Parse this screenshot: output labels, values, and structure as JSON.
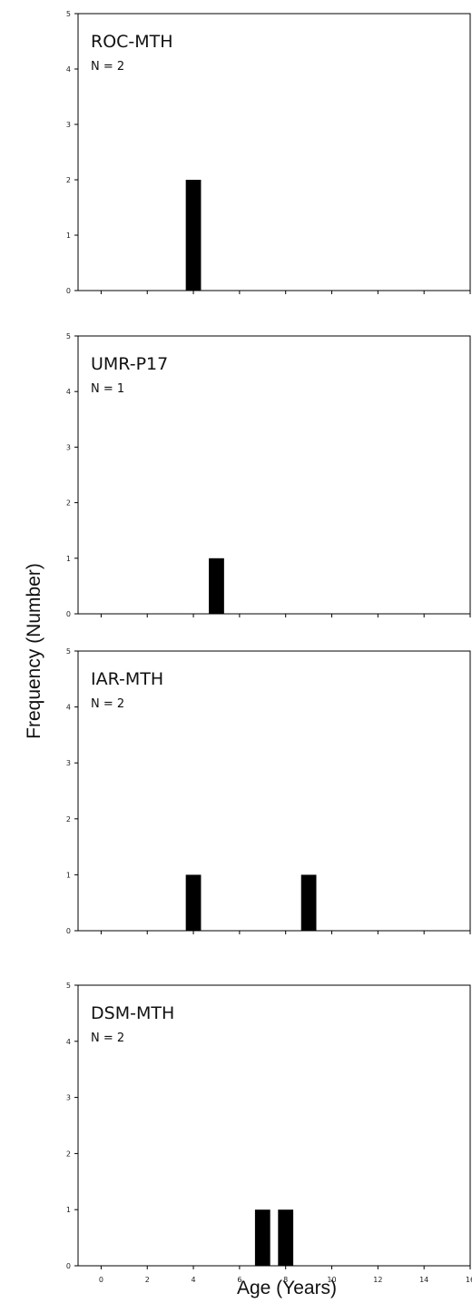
{
  "figure": {
    "ylabel": "Frequency (Number)",
    "xlabel": "Age (Years)"
  },
  "chart_data": [
    {
      "type": "bar",
      "title": "ROC-MTH",
      "subtitle": "N = 2",
      "x": [
        4
      ],
      "values": [
        2
      ],
      "xlim": [
        -1,
        16
      ],
      "ylim": [
        0,
        5
      ],
      "xticks": [
        0,
        2,
        4,
        6,
        8,
        10,
        12,
        14,
        16
      ],
      "yticks": [
        0,
        1,
        2,
        3,
        4,
        5
      ],
      "color": "#000000"
    },
    {
      "type": "bar",
      "title": "UMR-P17",
      "subtitle": "N = 1",
      "x": [
        5
      ],
      "values": [
        1
      ],
      "xlim": [
        -1,
        16
      ],
      "ylim": [
        0,
        5
      ],
      "xticks": [
        0,
        2,
        4,
        6,
        8,
        10,
        12,
        14,
        16
      ],
      "yticks": [
        0,
        1,
        2,
        3,
        4,
        5
      ],
      "color": "#000000"
    },
    {
      "type": "bar",
      "title": "IAR-MTH",
      "subtitle": "N = 2",
      "x": [
        4,
        9
      ],
      "values": [
        1,
        1
      ],
      "xlim": [
        -1,
        16
      ],
      "ylim": [
        0,
        5
      ],
      "xticks": [
        0,
        2,
        4,
        6,
        8,
        10,
        12,
        14,
        16
      ],
      "yticks": [
        0,
        1,
        2,
        3,
        4,
        5
      ],
      "color": "#000000"
    },
    {
      "type": "bar",
      "title": "DSM-MTH",
      "subtitle": "N = 2",
      "x": [
        7,
        8
      ],
      "values": [
        1,
        1
      ],
      "xlim": [
        -1,
        16
      ],
      "ylim": [
        0,
        5
      ],
      "xticks": [
        0,
        2,
        4,
        6,
        8,
        10,
        12,
        14,
        16
      ],
      "yticks": [
        0,
        1,
        2,
        3,
        4,
        5
      ],
      "color": "#000000"
    }
  ]
}
